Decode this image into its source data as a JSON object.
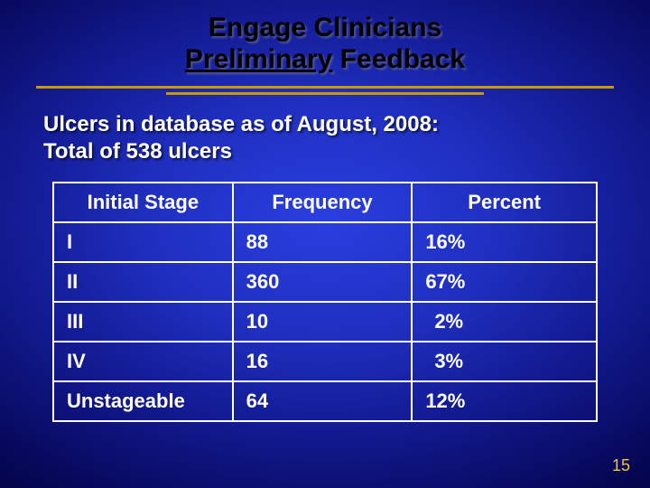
{
  "title": {
    "line1": "Engage Clinicians",
    "line2_underlined": "Preliminary",
    "line2_rest": " Feedback",
    "color": "#000000",
    "fontsize": 30
  },
  "divider": {
    "color": "#c89800"
  },
  "subtitle": {
    "line1": "Ulcers in database as of August, 2008:",
    "line2": "Total of 538 ulcers",
    "color": "#ffffff",
    "fontsize": 24
  },
  "table": {
    "type": "table",
    "border_color": "#ffffff",
    "text_color": "#ffffff",
    "fontsize": 22,
    "columns": [
      "Initial Stage",
      "Frequency",
      "Percent"
    ],
    "col_align": [
      "left",
      "left",
      "left"
    ],
    "col_widths_pct": [
      33,
      33,
      34
    ],
    "rows": [
      {
        "stage": "I",
        "frequency": "88",
        "percent": "16%",
        "pct_indent": false
      },
      {
        "stage": "II",
        "frequency": "360",
        "percent": "67%",
        "pct_indent": false
      },
      {
        "stage": "III",
        "frequency": "10",
        "percent": "2%",
        "pct_indent": true
      },
      {
        "stage": "IV",
        "frequency": "16",
        "percent": "3%",
        "pct_indent": true
      },
      {
        "stage": "Unstageable",
        "frequency": "64",
        "percent": "12%",
        "pct_indent": false
      }
    ]
  },
  "background": {
    "gradient_center": "#2a3fe0",
    "gradient_edge": "#020232"
  },
  "page_number": "15",
  "page_number_color": "#f4c430"
}
